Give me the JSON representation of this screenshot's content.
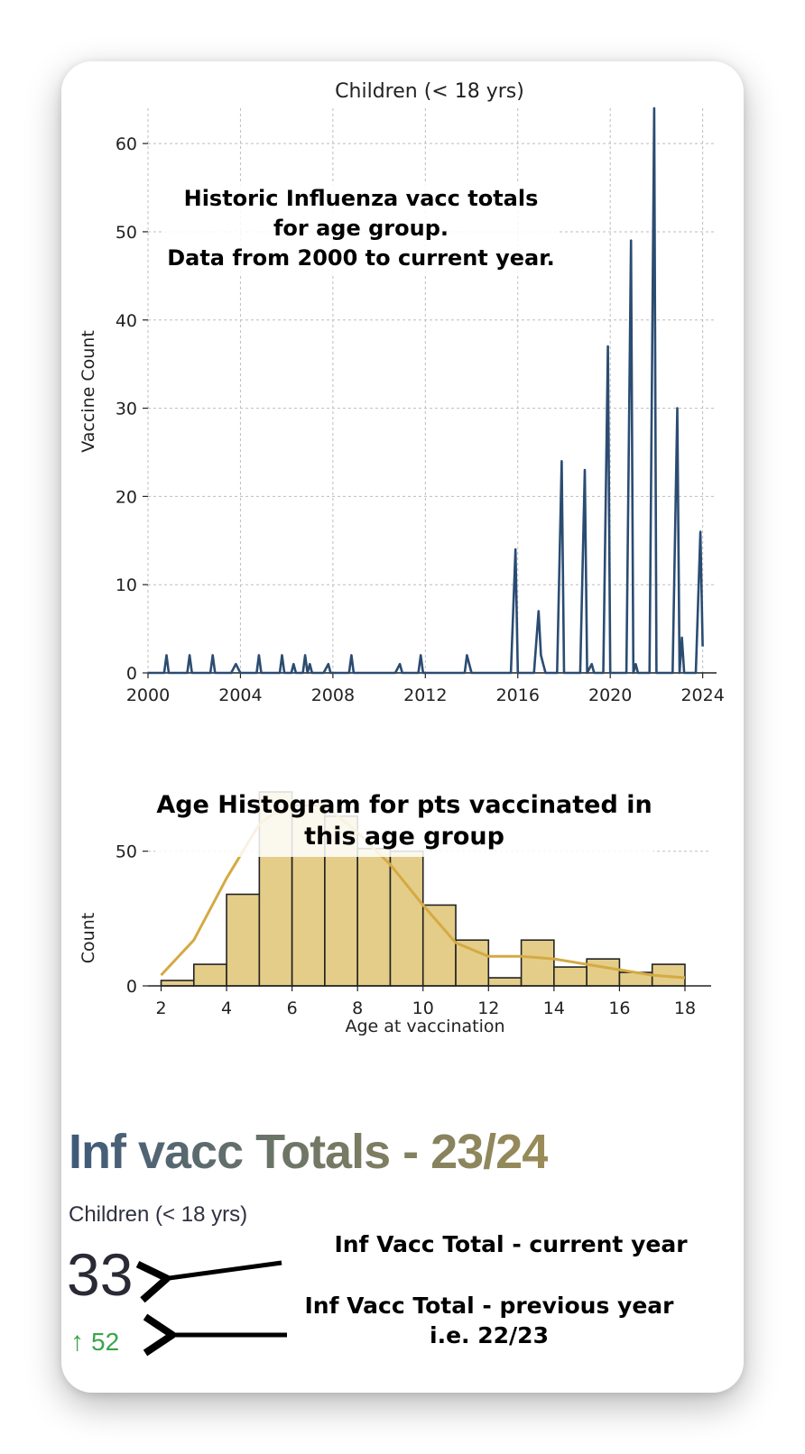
{
  "chart_data": [
    {
      "type": "line",
      "title": "Children (< 18 yrs)",
      "xlabel": "",
      "ylabel": "Vaccine Count",
      "xlim": [
        2000,
        2024.6
      ],
      "ylim": [
        0,
        64
      ],
      "x_ticks": [
        "2000",
        "2004",
        "2008",
        "2012",
        "2016",
        "2020",
        "2024"
      ],
      "x_tick_values": [
        2000,
        2004,
        2008,
        2012,
        2016,
        2020,
        2024
      ],
      "y_ticks": [
        "0",
        "10",
        "20",
        "30",
        "40",
        "50",
        "60"
      ],
      "y_tick_values": [
        0,
        10,
        20,
        30,
        40,
        50,
        60
      ],
      "grid": true,
      "color": "#2b4c72",
      "series": [
        {
          "x": [
            2000.7,
            2000.8,
            2000.9,
            2001.7,
            2001.8,
            2001.9,
            2002.7,
            2002.8,
            2002.9,
            2003.6,
            2003.8,
            2004.0,
            2004.7,
            2004.8,
            2004.9,
            2005.7,
            2005.8,
            2005.9,
            2006.2,
            2006.3,
            2006.4,
            2006.7,
            2006.8,
            2006.9,
            2007.0,
            2007.1,
            2007.6,
            2007.8,
            2007.9,
            2008.7,
            2008.8,
            2008.9,
            2010.7,
            2010.9,
            2011.0,
            2011.7,
            2011.8,
            2011.9,
            2013.7,
            2013.8,
            2014.0,
            2015.7,
            2015.9,
            2016.0,
            2016.1,
            2016.7,
            2016.9,
            2017.0,
            2017.1,
            2017.2,
            2017.7,
            2017.9,
            2018.0,
            2018.1,
            2018.7,
            2018.9,
            2019.0,
            2019.2,
            2019.3,
            2019.4,
            2019.7,
            2019.9,
            2020.0,
            2020.1,
            2020.7,
            2020.9,
            2021.0,
            2021.1,
            2021.2,
            2021.3,
            2021.7,
            2021.9,
            2022.0,
            2022.1,
            2022.7,
            2022.9,
            2023.0,
            2023.1,
            2023.2,
            2023.3,
            2023.7,
            2023.9,
            2024.0
          ],
          "y": [
            0,
            2,
            0,
            0,
            2,
            0,
            0,
            2,
            0,
            0,
            1,
            0,
            0,
            2,
            0,
            0,
            2,
            0,
            0,
            1,
            0,
            0,
            2,
            0,
            1,
            0,
            0,
            1,
            0,
            0,
            2,
            0,
            0,
            1,
            0,
            0,
            2,
            0,
            0,
            2,
            0,
            0,
            14,
            0,
            0,
            0,
            7,
            2,
            1,
            0,
            0,
            24,
            0,
            0,
            0,
            23,
            0,
            1,
            0,
            0,
            0,
            37,
            0,
            0,
            0,
            49,
            0,
            1,
            0,
            0,
            0,
            64,
            0,
            0,
            0,
            30,
            0,
            4,
            0,
            0,
            0,
            16,
            3
          ]
        }
      ]
    },
    {
      "type": "bar",
      "title": "",
      "xlabel": "Age at vaccination",
      "ylabel": "Count",
      "xlim": [
        1.6,
        18.8
      ],
      "ylim": [
        0,
        72
      ],
      "x_ticks": [
        "2",
        "4",
        "6",
        "8",
        "10",
        "12",
        "14",
        "16",
        "18"
      ],
      "x_tick_values": [
        2,
        4,
        6,
        8,
        10,
        12,
        14,
        16,
        18
      ],
      "y_ticks": [
        "0",
        "50"
      ],
      "y_tick_values": [
        0,
        50
      ],
      "grid": true,
      "bar_color": "#e4cd88",
      "kde_color": "#d4aa44",
      "bin_edges": [
        2,
        3,
        4,
        5,
        6,
        7,
        8,
        9,
        10,
        11,
        12,
        13,
        14,
        15,
        16,
        17,
        18
      ],
      "values": [
        2,
        8,
        34,
        72,
        67,
        63,
        51,
        50,
        30,
        17,
        3,
        17,
        7,
        10,
        5,
        8
      ],
      "kde": {
        "x": [
          2,
          3,
          4,
          5,
          6,
          7,
          8,
          9,
          10,
          11,
          12,
          13,
          14,
          15,
          16,
          17,
          18
        ],
        "y": [
          4,
          17,
          40,
          60,
          69,
          67,
          57,
          45,
          30,
          16,
          11,
          11,
          10,
          8,
          6,
          4,
          3
        ]
      }
    }
  ],
  "annotations": {
    "line_chart_note": [
      "Historic Influenza vacc totals",
      "for age group.",
      "Data from 2000 to current year."
    ],
    "histogram_note": [
      "Age Histogram for pts vaccinated in",
      "this age group"
    ],
    "current_note": "Inf Vacc Total - current year",
    "previous_note": [
      "Inf Vacc Total - previous year",
      "i.e. 22/23"
    ]
  },
  "metrics": {
    "title_part1": "Inf vacc Totals - ",
    "title_part2": "23/24",
    "label": "Children (< 18 yrs)",
    "value": "33",
    "delta_icon": "arrow-up-icon",
    "delta_value": "52",
    "delta_color": "#3aa34a"
  }
}
